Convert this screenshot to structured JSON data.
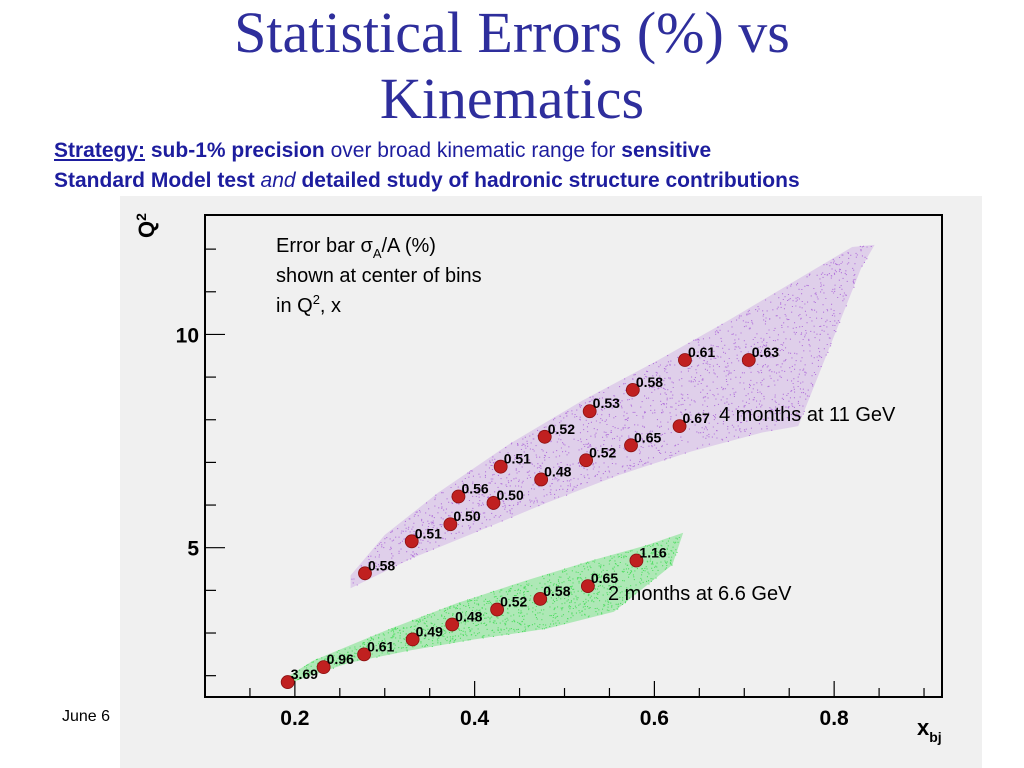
{
  "slide": {
    "title_line1": "Statistical Errors (%) vs",
    "title_line2": "Kinematics",
    "strategy": {
      "label": "Strategy:",
      "part1_bold": "sub-1% precision",
      "part2": "over broad kinematic range for",
      "part3_bold": "sensitive",
      "part4_bold": "Standard Model test",
      "part5_italic": "and",
      "part6_bold": "detailed study of hadronic structure contributions"
    },
    "footer_date": "June 6"
  },
  "colors": {
    "title": "#2e2e9c",
    "strategy_text": "#1d1d9e",
    "point": "#c02020",
    "band_11gev": "#a65ad6",
    "band_66gev": "#33d94a",
    "panel": "#f0f0f0"
  },
  "chart_data": {
    "type": "scatter",
    "xlabel_main": "x",
    "xlabel_sub": "bj",
    "ylabel_main": "Q",
    "ylabel_sup": "2",
    "xlim": [
      0.1,
      0.92
    ],
    "ylim": [
      1.5,
      12.8
    ],
    "x_ticks": [
      0.2,
      0.4,
      0.6,
      0.8
    ],
    "x_tick_labels": [
      "0.2",
      "0.4",
      "0.6",
      "0.8"
    ],
    "y_ticks": [
      5,
      10
    ],
    "y_tick_labels": [
      "5",
      "10"
    ],
    "annotation": {
      "line1_pre": "Error bar σ",
      "line1_sub": "A",
      "line1_post": "/A (%)",
      "line2": "shown at center of bins",
      "line3_pre": "in Q",
      "line3_sup": "2",
      "line3_post": ", x"
    },
    "series": [
      {
        "name": "4 months at 11 GeV",
        "points": [
          {
            "x": 0.278,
            "y": 4.4,
            "label": "0.58"
          },
          {
            "x": 0.33,
            "y": 5.15,
            "label": "0.51"
          },
          {
            "x": 0.373,
            "y": 5.55,
            "label": "0.50"
          },
          {
            "x": 0.382,
            "y": 6.2,
            "label": "0.56"
          },
          {
            "x": 0.421,
            "y": 6.05,
            "label": "0.50"
          },
          {
            "x": 0.429,
            "y": 6.9,
            "label": "0.51"
          },
          {
            "x": 0.474,
            "y": 6.6,
            "label": "0.48"
          },
          {
            "x": 0.478,
            "y": 7.6,
            "label": "0.52"
          },
          {
            "x": 0.524,
            "y": 7.05,
            "label": "0.52"
          },
          {
            "x": 0.528,
            "y": 8.2,
            "label": "0.53"
          },
          {
            "x": 0.574,
            "y": 7.4,
            "label": "0.65"
          },
          {
            "x": 0.576,
            "y": 8.7,
            "label": "0.58"
          },
          {
            "x": 0.628,
            "y": 7.85,
            "label": "0.67"
          },
          {
            "x": 0.634,
            "y": 9.4,
            "label": "0.61"
          },
          {
            "x": 0.705,
            "y": 9.4,
            "label": "0.63"
          }
        ]
      },
      {
        "name": "2 months at 6.6 GeV",
        "points": [
          {
            "x": 0.192,
            "y": 1.85,
            "label": "3.69"
          },
          {
            "x": 0.232,
            "y": 2.2,
            "label": "0.96"
          },
          {
            "x": 0.277,
            "y": 2.5,
            "label": "0.61"
          },
          {
            "x": 0.331,
            "y": 2.85,
            "label": "0.49"
          },
          {
            "x": 0.375,
            "y": 3.2,
            "label": "0.48"
          },
          {
            "x": 0.425,
            "y": 3.55,
            "label": "0.52"
          },
          {
            "x": 0.473,
            "y": 3.8,
            "label": "0.58"
          },
          {
            "x": 0.526,
            "y": 4.1,
            "label": "0.65"
          },
          {
            "x": 0.58,
            "y": 4.7,
            "label": "1.16"
          }
        ]
      }
    ]
  }
}
